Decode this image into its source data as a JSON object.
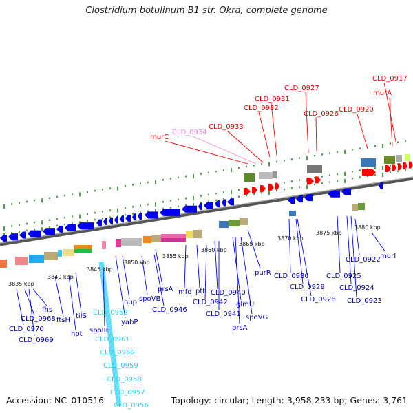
{
  "title": "Clostridium botulinum B1 str. Okra, complete genome",
  "accession": "Accession: NC_010516",
  "topology": "Topology: circular; Length: 3,958,233 bp; Genes: 3,761",
  "colors": {
    "forward": "#ff0000",
    "reverse": "#0000ee",
    "highlight": "#ee88dd",
    "rna": "#33ccee",
    "backbone": "#777777",
    "tick": "#228822"
  },
  "scale_labels": [
    "3835 kbp",
    "3840 kbp",
    "3845 kbp",
    "3850 kbp",
    "3855 kbp",
    "3860 kbp",
    "3865 kbp",
    "3870 kbp",
    "3875 kbp",
    "3880 kbp"
  ],
  "top_labels": [
    "CLD_0917",
    "murA",
    "CLD_0927",
    "CLD_0931",
    "CLD_0932",
    "CLD_0926",
    "CLD_0920",
    "CLD_0933",
    "CLD_0934",
    "murC"
  ],
  "bottom_labels": [
    "fhs",
    "CLD_0968",
    "CLD_0970",
    "CLD_0969",
    "ftsH",
    "hpt",
    "tilS",
    "spoIIE",
    "CLD_0962",
    "hup",
    "yabP",
    "spoVB",
    "CLD_0946",
    "prsA",
    "mfd",
    "pth",
    "CLD_0942",
    "CLD_0940",
    "CLD_0941",
    "glmU",
    "prsA",
    "spoVG",
    "purR",
    "CLD_0930",
    "CLD_0929",
    "CLD_0928",
    "CLD_0925",
    "CLD_0924",
    "CLD_0923",
    "CLD_0922",
    "murI"
  ],
  "rna_labels": [
    "CLD_0961",
    "CLD_0960",
    "CLD_0959",
    "CLD_0958",
    "CLD_0957",
    "CLD_0956"
  ]
}
